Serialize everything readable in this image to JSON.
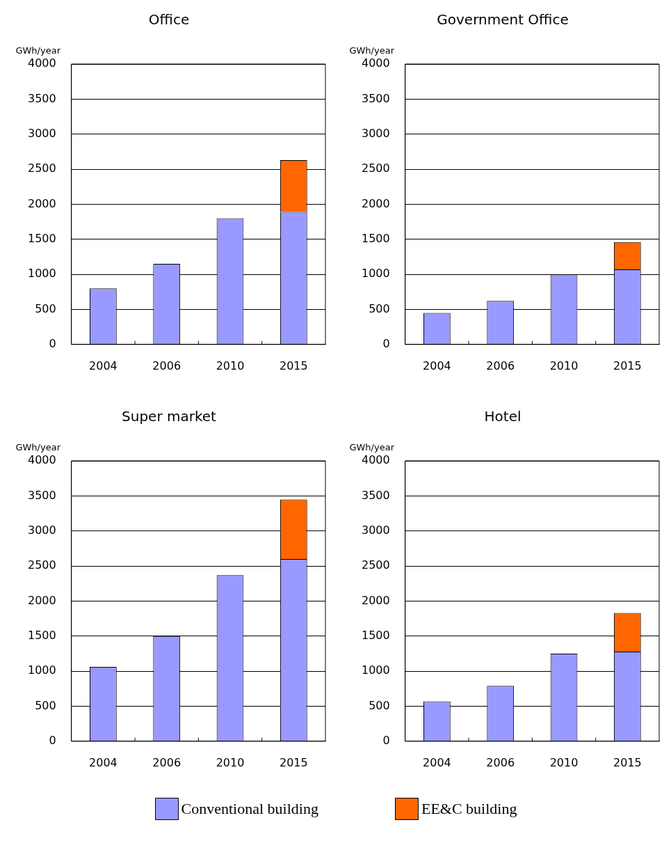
{
  "chart_data": [
    {
      "type": "bar",
      "title": "Office",
      "ylabel": "GWh/year",
      "categories": [
        "2004",
        "2006",
        "2010",
        "2015"
      ],
      "stacked": true,
      "ylim": [
        0,
        4000
      ],
      "yticks": [
        0,
        500,
        1000,
        1500,
        2000,
        2500,
        3000,
        3500,
        4000
      ],
      "grid": "y",
      "legend": "bottom",
      "series": [
        {
          "name": "Conventional building",
          "color": "#9999ff",
          "values": [
            800,
            1150,
            1800,
            1890
          ]
        },
        {
          "name": "EE&C building",
          "color": "#ff6600",
          "values": [
            null,
            null,
            null,
            740
          ]
        }
      ]
    },
    {
      "type": "bar",
      "title": "Government Office",
      "ylabel": "GWh/year",
      "categories": [
        "2004",
        "2006",
        "2010",
        "2015"
      ],
      "stacked": true,
      "ylim": [
        0,
        4000
      ],
      "yticks": [
        0,
        500,
        1000,
        1500,
        2000,
        2500,
        3000,
        3500,
        4000
      ],
      "grid": "y",
      "series": [
        {
          "color": "#9999ff",
          "values": [
            450,
            620,
            1000,
            1070
          ]
        },
        {
          "color": "#ff6600",
          "values": [
            null,
            null,
            null,
            390
          ]
        }
      ]
    },
    {
      "type": "bar",
      "title": "Super market",
      "ylabel": "GWh/year",
      "categories": [
        "2004",
        "2006",
        "2010",
        "2015"
      ],
      "stacked": true,
      "ylim": [
        0,
        4000
      ],
      "yticks": [
        0,
        500,
        1000,
        1500,
        2000,
        2500,
        3000,
        3500,
        4000
      ],
      "grid": "y",
      "series": [
        {
          "color": "#9999ff",
          "values": [
            1060,
            1500,
            2370,
            2600
          ]
        },
        {
          "color": "#ff6600",
          "values": [
            null,
            null,
            null,
            850
          ]
        }
      ]
    },
    {
      "type": "bar",
      "title": "Hotel",
      "ylabel": "GWh/year",
      "categories": [
        "2004",
        "2006",
        "2010",
        "2015"
      ],
      "stacked": true,
      "ylim": [
        0,
        4000
      ],
      "yticks": [
        0,
        500,
        1000,
        1500,
        2000,
        2500,
        3000,
        3500,
        4000
      ],
      "grid": "y",
      "series": [
        {
          "color": "#9999ff",
          "values": [
            570,
            790,
            1250,
            1280
          ]
        },
        {
          "color": "#ff6600",
          "values": [
            null,
            null,
            null,
            550
          ]
        }
      ]
    }
  ]
}
